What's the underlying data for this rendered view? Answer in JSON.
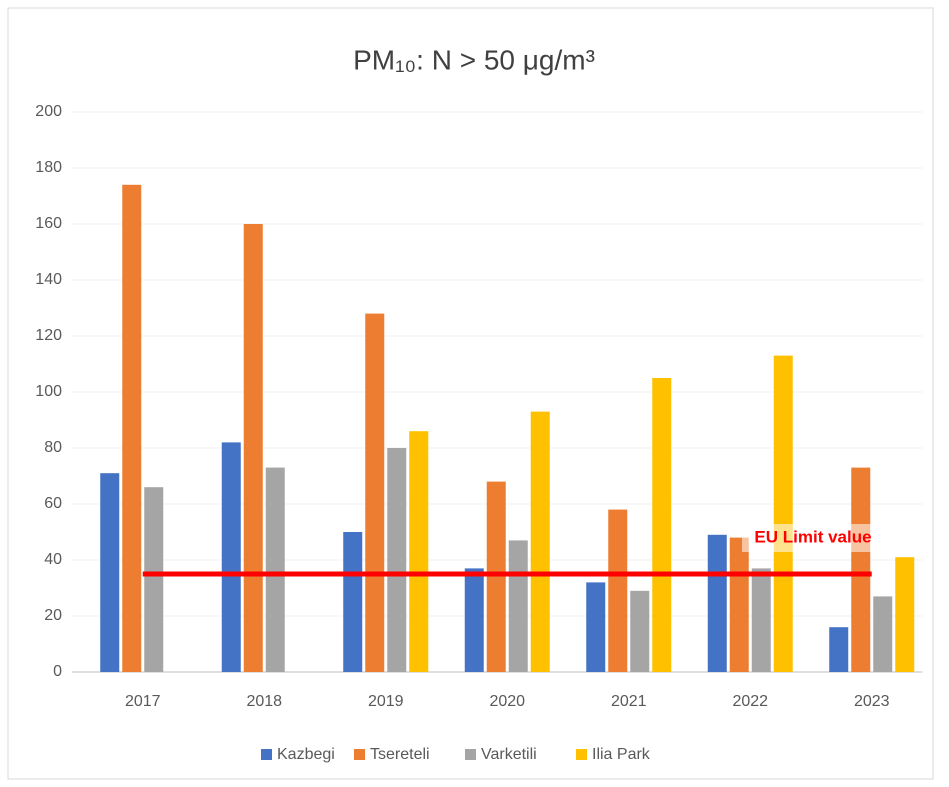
{
  "chart_data": {
    "type": "bar",
    "title": "PM₁₀: N > 50 μg/m³",
    "categories": [
      "2017",
      "2018",
      "2019",
      "2020",
      "2021",
      "2022",
      "2023"
    ],
    "series": [
      {
        "name": "Kazbegi",
        "color": "#4472c4",
        "values": [
          71,
          82,
          50,
          37,
          32,
          49,
          16
        ]
      },
      {
        "name": "Tsereteli",
        "color": "#ed7d31",
        "values": [
          174,
          160,
          128,
          68,
          58,
          48,
          73
        ]
      },
      {
        "name": "Varketili",
        "color": "#a5a5a5",
        "values": [
          66,
          73,
          80,
          47,
          29,
          37,
          27
        ]
      },
      {
        "name": "Ilia Park",
        "color": "#ffc000",
        "values": [
          null,
          null,
          86,
          93,
          105,
          113,
          41
        ]
      }
    ],
    "limit": {
      "value": 35,
      "label": "EU Limit value",
      "color": "#ff0000"
    },
    "ylim": [
      0,
      200
    ],
    "yticks": [
      0,
      20,
      40,
      60,
      80,
      100,
      120,
      140,
      160,
      180,
      200
    ],
    "grid": true,
    "legend": "bottom"
  }
}
